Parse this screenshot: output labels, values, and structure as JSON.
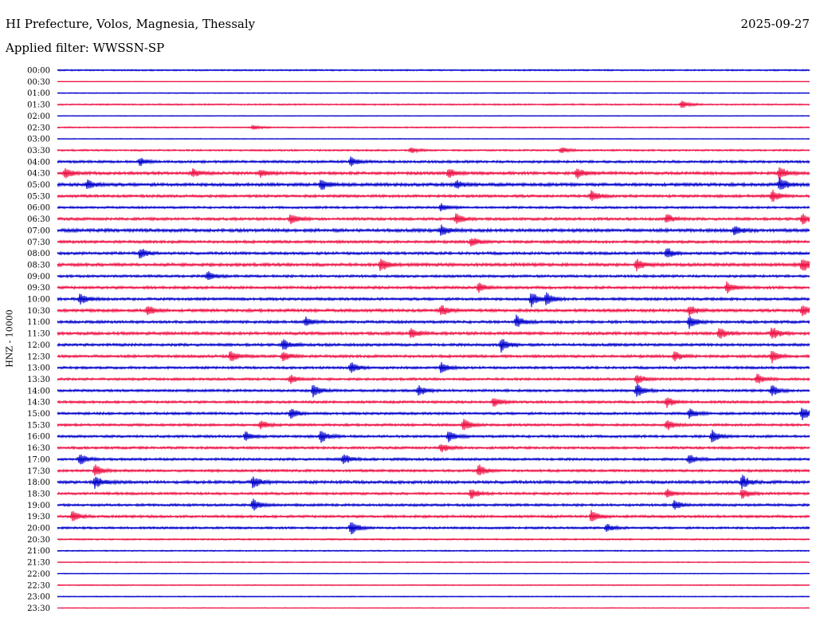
{
  "header": {
    "station": "HI Prefecture, Volos, Magnesia, Thessaly",
    "date": "2025-09-27",
    "filter": "Applied filter: WWSSN-SP",
    "channel": "HNZ - 10000"
  },
  "colors": {
    "even_trace": "#0000cc",
    "odd_trace": "#ee1144",
    "text": "#000000"
  },
  "chart_data": {
    "type": "helicorder",
    "time_labels": [
      "00:00",
      "00:30",
      "01:00",
      "01:30",
      "02:00",
      "02:30",
      "03:00",
      "03:30",
      "04:00",
      "04:30",
      "05:00",
      "05:30",
      "06:00",
      "06:30",
      "07:00",
      "07:30",
      "08:00",
      "08:30",
      "09:00",
      "09:30",
      "10:00",
      "10:30",
      "11:00",
      "11:30",
      "12:00",
      "12:30",
      "13:00",
      "13:30",
      "14:00",
      "14:30",
      "15:00",
      "15:30",
      "16:00",
      "16:30",
      "17:00",
      "17:30",
      "18:00",
      "18:30",
      "19:00",
      "19:30",
      "20:00",
      "20:30",
      "21:00",
      "21:30",
      "22:00",
      "22:30",
      "23:00",
      "23:30"
    ],
    "row_noise_level": [
      0.6,
      0.2,
      0.4,
      0.6,
      0.3,
      0.5,
      0.3,
      0.7,
      1.0,
      1.2,
      1.3,
      1.1,
      0.9,
      1.1,
      1.3,
      1.1,
      1.1,
      1.3,
      1.0,
      1.1,
      1.1,
      1.2,
      1.1,
      1.2,
      1.1,
      1.1,
      1.0,
      1.0,
      1.0,
      1.0,
      1.0,
      1.0,
      1.0,
      1.0,
      1.0,
      1.0,
      1.2,
      1.0,
      1.0,
      1.0,
      0.9,
      0.6,
      0.5,
      0.4,
      0.3,
      0.4,
      0.4,
      0.3
    ],
    "events": [
      {
        "row": 3,
        "t": 0.83,
        "amp": 5
      },
      {
        "row": 5,
        "t": 0.26,
        "amp": 3
      },
      {
        "row": 7,
        "t": 0.47,
        "amp": 4
      },
      {
        "row": 7,
        "t": 0.67,
        "amp": 4
      },
      {
        "row": 8,
        "t": 0.11,
        "amp": 5
      },
      {
        "row": 8,
        "t": 0.39,
        "amp": 6
      },
      {
        "row": 9,
        "t": 0.01,
        "amp": 7
      },
      {
        "row": 9,
        "t": 0.18,
        "amp": 5
      },
      {
        "row": 9,
        "t": 0.27,
        "amp": 5
      },
      {
        "row": 9,
        "t": 0.52,
        "amp": 6
      },
      {
        "row": 9,
        "t": 0.69,
        "amp": 7
      },
      {
        "row": 9,
        "t": 0.96,
        "amp": 8
      },
      {
        "row": 10,
        "t": 0.04,
        "amp": 6
      },
      {
        "row": 10,
        "t": 0.35,
        "amp": 8
      },
      {
        "row": 10,
        "t": 0.53,
        "amp": 5
      },
      {
        "row": 10,
        "t": 0.96,
        "amp": 9
      },
      {
        "row": 11,
        "t": 0.71,
        "amp": 7
      },
      {
        "row": 11,
        "t": 0.95,
        "amp": 8
      },
      {
        "row": 12,
        "t": 0.51,
        "amp": 5
      },
      {
        "row": 13,
        "t": 0.31,
        "amp": 7
      },
      {
        "row": 13,
        "t": 0.53,
        "amp": 7
      },
      {
        "row": 13,
        "t": 0.81,
        "amp": 6
      },
      {
        "row": 13,
        "t": 0.99,
        "amp": 7
      },
      {
        "row": 14,
        "t": 0.51,
        "amp": 7
      },
      {
        "row": 14,
        "t": 0.9,
        "amp": 6
      },
      {
        "row": 15,
        "t": 0.55,
        "amp": 6
      },
      {
        "row": 16,
        "t": 0.11,
        "amp": 7
      },
      {
        "row": 16,
        "t": 0.81,
        "amp": 7
      },
      {
        "row": 17,
        "t": 0.43,
        "amp": 9
      },
      {
        "row": 17,
        "t": 0.77,
        "amp": 7
      },
      {
        "row": 17,
        "t": 0.99,
        "amp": 9
      },
      {
        "row": 18,
        "t": 0.2,
        "amp": 6
      },
      {
        "row": 19,
        "t": 0.56,
        "amp": 6
      },
      {
        "row": 19,
        "t": 0.89,
        "amp": 7
      },
      {
        "row": 20,
        "t": 0.03,
        "amp": 7
      },
      {
        "row": 20,
        "t": 0.63,
        "amp": 10
      },
      {
        "row": 20,
        "t": 0.65,
        "amp": 8
      },
      {
        "row": 21,
        "t": 0.12,
        "amp": 7
      },
      {
        "row": 21,
        "t": 0.51,
        "amp": 7
      },
      {
        "row": 21,
        "t": 0.84,
        "amp": 7
      },
      {
        "row": 21,
        "t": 0.99,
        "amp": 8
      },
      {
        "row": 22,
        "t": 0.33,
        "amp": 6
      },
      {
        "row": 22,
        "t": 0.61,
        "amp": 8
      },
      {
        "row": 22,
        "t": 0.84,
        "amp": 8
      },
      {
        "row": 23,
        "t": 0.47,
        "amp": 7
      },
      {
        "row": 23,
        "t": 0.88,
        "amp": 8
      },
      {
        "row": 23,
        "t": 0.95,
        "amp": 8
      },
      {
        "row": 24,
        "t": 0.3,
        "amp": 7
      },
      {
        "row": 24,
        "t": 0.59,
        "amp": 9
      },
      {
        "row": 25,
        "t": 0.23,
        "amp": 8
      },
      {
        "row": 25,
        "t": 0.3,
        "amp": 6
      },
      {
        "row": 25,
        "t": 0.82,
        "amp": 6
      },
      {
        "row": 25,
        "t": 0.95,
        "amp": 8
      },
      {
        "row": 26,
        "t": 0.39,
        "amp": 8
      },
      {
        "row": 26,
        "t": 0.51,
        "amp": 7
      },
      {
        "row": 27,
        "t": 0.31,
        "amp": 6
      },
      {
        "row": 27,
        "t": 0.77,
        "amp": 7
      },
      {
        "row": 27,
        "t": 0.93,
        "amp": 7
      },
      {
        "row": 28,
        "t": 0.34,
        "amp": 8
      },
      {
        "row": 28,
        "t": 0.48,
        "amp": 7
      },
      {
        "row": 28,
        "t": 0.77,
        "amp": 9
      },
      {
        "row": 28,
        "t": 0.95,
        "amp": 7
      },
      {
        "row": 29,
        "t": 0.58,
        "amp": 6
      },
      {
        "row": 29,
        "t": 0.81,
        "amp": 7
      },
      {
        "row": 30,
        "t": 0.31,
        "amp": 7
      },
      {
        "row": 30,
        "t": 0.84,
        "amp": 7
      },
      {
        "row": 30,
        "t": 0.99,
        "amp": 9
      },
      {
        "row": 31,
        "t": 0.27,
        "amp": 6
      },
      {
        "row": 31,
        "t": 0.54,
        "amp": 8
      },
      {
        "row": 31,
        "t": 0.81,
        "amp": 7
      },
      {
        "row": 32,
        "t": 0.25,
        "amp": 6
      },
      {
        "row": 32,
        "t": 0.35,
        "amp": 8
      },
      {
        "row": 32,
        "t": 0.52,
        "amp": 7
      },
      {
        "row": 32,
        "t": 0.87,
        "amp": 8
      },
      {
        "row": 33,
        "t": 0.51,
        "amp": 6
      },
      {
        "row": 34,
        "t": 0.03,
        "amp": 7
      },
      {
        "row": 34,
        "t": 0.38,
        "amp": 7
      },
      {
        "row": 34,
        "t": 0.84,
        "amp": 7
      },
      {
        "row": 35,
        "t": 0.05,
        "amp": 8
      },
      {
        "row": 35,
        "t": 0.56,
        "amp": 8
      },
      {
        "row": 36,
        "t": 0.05,
        "amp": 8
      },
      {
        "row": 36,
        "t": 0.26,
        "amp": 8
      },
      {
        "row": 36,
        "t": 0.91,
        "amp": 9
      },
      {
        "row": 37,
        "t": 0.55,
        "amp": 7
      },
      {
        "row": 37,
        "t": 0.81,
        "amp": 6
      },
      {
        "row": 37,
        "t": 0.91,
        "amp": 7
      },
      {
        "row": 38,
        "t": 0.26,
        "amp": 8
      },
      {
        "row": 38,
        "t": 0.82,
        "amp": 6
      },
      {
        "row": 39,
        "t": 0.02,
        "amp": 7
      },
      {
        "row": 39,
        "t": 0.71,
        "amp": 8
      },
      {
        "row": 40,
        "t": 0.39,
        "amp": 9
      },
      {
        "row": 40,
        "t": 0.73,
        "amp": 5
      }
    ]
  }
}
